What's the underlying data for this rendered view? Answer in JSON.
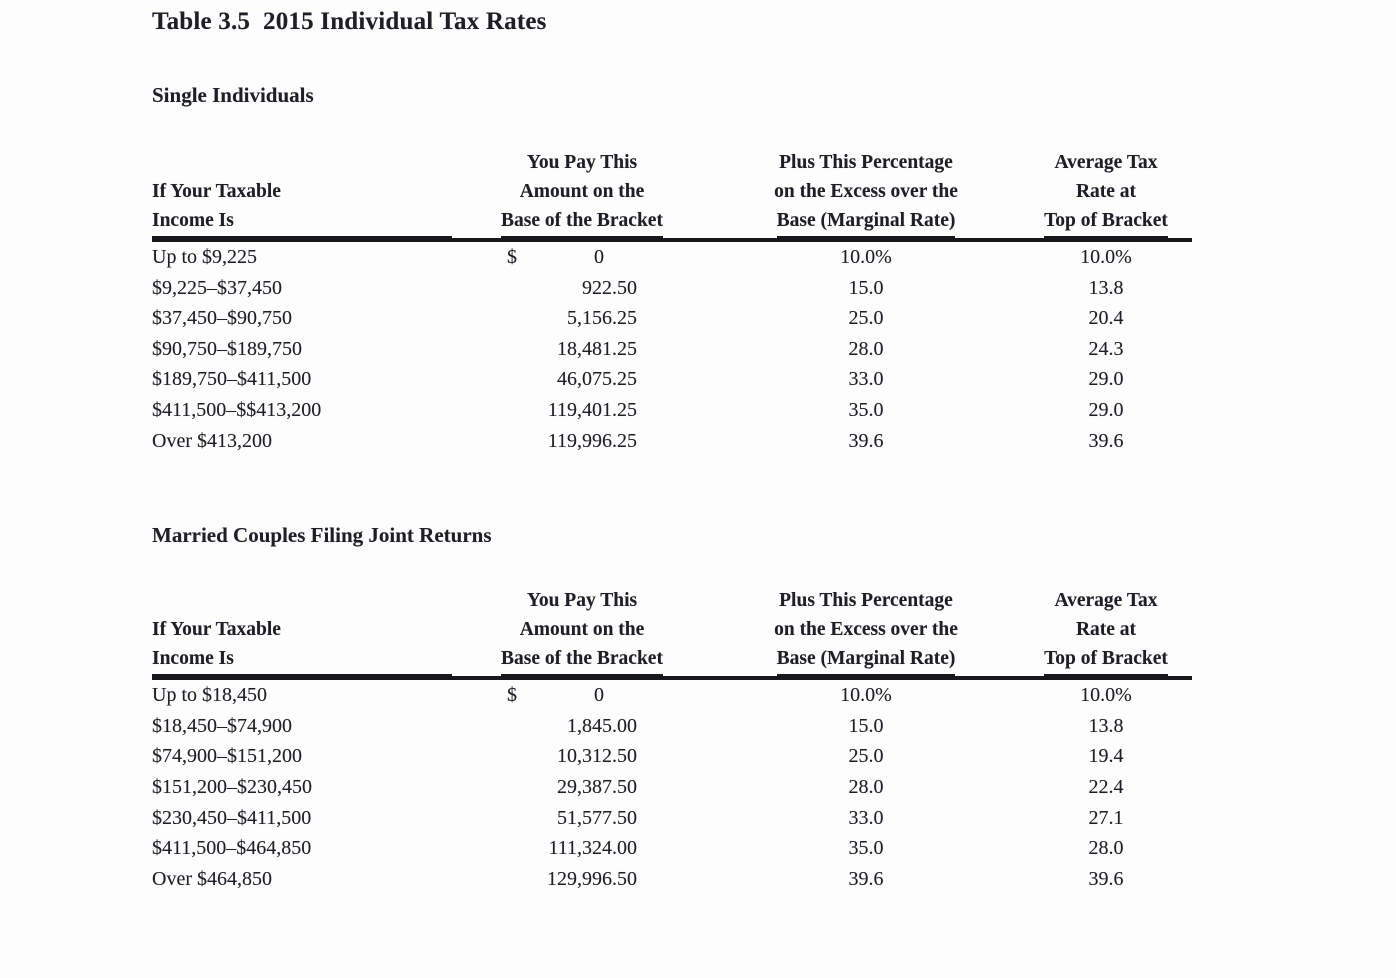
{
  "title": "Table 3.5  2015 Individual Tax Rates",
  "header": {
    "col_income_l1": "If Your Taxable",
    "col_income_l2": "Income Is",
    "col_amount_l1": "You Pay This",
    "col_amount_l2": "Amount on the",
    "col_amount_l3": "Base of the Bracket",
    "col_marginal_l1": "Plus This Percentage",
    "col_marginal_l2": "on the Excess over the",
    "col_marginal_l3": "Base (Marginal Rate)",
    "col_avg_l1": "Average Tax",
    "col_avg_l2": "Rate at",
    "col_avg_l3": "Top of Bracket"
  },
  "single": {
    "section_title": "Single Individuals",
    "rows": [
      {
        "income": "Up to $9,225",
        "dollar": "$",
        "amount": "0",
        "marginal": "10.0%",
        "average": "10.0%"
      },
      {
        "income": "$9,225–$37,450",
        "amount": "922.50",
        "marginal": "15.0",
        "average": "13.8"
      },
      {
        "income": "$37,450–$90,750",
        "amount": "5,156.25",
        "marginal": "25.0",
        "average": "20.4"
      },
      {
        "income": "$90,750–$189,750",
        "amount": "18,481.25",
        "marginal": "28.0",
        "average": "24.3"
      },
      {
        "income": "$189,750–$411,500",
        "amount": "46,075.25",
        "marginal": "33.0",
        "average": "29.0"
      },
      {
        "income": "$411,500–$$413,200",
        "amount": "119,401.25",
        "marginal": "35.0",
        "average": "29.0"
      },
      {
        "income": "Over $413,200",
        "amount": "119,996.25",
        "marginal": "39.6",
        "average": "39.6"
      }
    ]
  },
  "married": {
    "section_title": "Married Couples Filing Joint Returns",
    "rows": [
      {
        "income": "Up to $18,450",
        "dollar": "$",
        "amount": "0",
        "marginal": "10.0%",
        "average": "10.0%"
      },
      {
        "income": "$18,450–$74,900",
        "amount": "1,845.00",
        "marginal": "15.0",
        "average": "13.8"
      },
      {
        "income": "$74,900–$151,200",
        "amount": "10,312.50",
        "marginal": "25.0",
        "average": "19.4"
      },
      {
        "income": "$151,200–$230,450",
        "amount": "29,387.50",
        "marginal": "28.0",
        "average": "22.4"
      },
      {
        "income": "$230,450–$411,500",
        "amount": "51,577.50",
        "marginal": "33.0",
        "average": "27.1"
      },
      {
        "income": "$411,500–$464,850",
        "amount": "111,324.00",
        "marginal": "35.0",
        "average": "28.0"
      },
      {
        "income": "Over $464,850",
        "amount": "129,996.50",
        "marginal": "39.6",
        "average": "39.6"
      }
    ]
  },
  "colors": {
    "text": "#1f1f27",
    "rule": "#17171c",
    "background": "#fdfdfd"
  }
}
